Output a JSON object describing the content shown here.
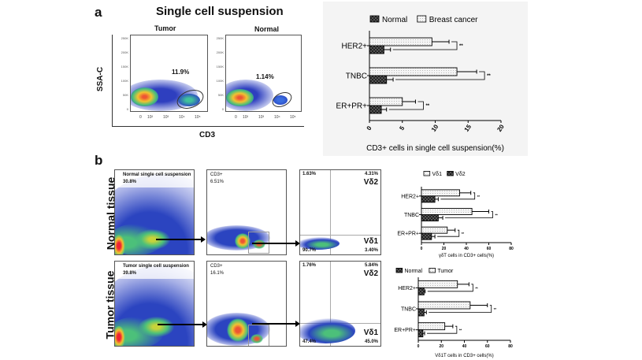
{
  "panel_a": {
    "letter": "a",
    "title": "Single cell suspension",
    "plot_labels": [
      "Tumor",
      "Normal"
    ],
    "gate_percents": [
      "11.9%",
      "1.14%"
    ],
    "y_axis_label": "SSA-C",
    "x_axis_label": "CD3",
    "y_ticks": [
      "250K",
      "200K",
      "150K",
      "100K",
      "50K",
      "0"
    ],
    "x_ticks": [
      "0",
      "10²",
      "10³",
      "10⁴",
      "10⁵"
    ]
  },
  "panel_b": {
    "letter": "b",
    "rows": [
      {
        "label": "Normal tissue",
        "gate1_name": "Normal single cell suspension",
        "gate1_pct": "30.8%",
        "gate2_name": "CD3+",
        "gate2_pct": "6.51%",
        "q_ul": "1.63%",
        "q_ur": "4.31%",
        "q_ll": "90.7%",
        "q_lr": "3.40%",
        "vd2": "Vδ2",
        "vd1": "Vδ1"
      },
      {
        "label": "Tumor tissue",
        "gate1_name": "Tumor single cell suspension",
        "gate1_pct": "39.8%",
        "gate2_name": "CD3+",
        "gate2_pct": "16.1%",
        "q_ul": "1.76%",
        "q_ur": "5.84%",
        "q_ll": "47.4%",
        "q_lr": "45.0%",
        "vd2": "Vδ2",
        "vd1": "Vδ1"
      }
    ]
  },
  "chart_data": [
    {
      "type": "bar",
      "orientation": "horizontal",
      "categories": [
        "HER2+",
        "TNBC",
        "ER+PR+"
      ],
      "series": [
        {
          "name": "Breast cancer",
          "values": [
            9.5,
            13.3,
            5.0
          ],
          "errors": [
            2.6,
            3.0,
            2.0
          ],
          "pattern": "dotted-light"
        },
        {
          "name": "Normal",
          "values": [
            2.2,
            2.6,
            1.8
          ],
          "errors": [
            1.0,
            1.0,
            0.8
          ],
          "pattern": "checker-dark"
        }
      ],
      "legend_order": [
        "Normal",
        "Breast cancer"
      ],
      "significance": [
        "**",
        "**",
        "**"
      ],
      "xlabel": "CD3+ cells in single cell suspension(%)",
      "xlim": [
        0,
        20
      ],
      "xticks": [
        "0",
        "5",
        "10",
        "15",
        "20"
      ],
      "legend": "top"
    },
    {
      "type": "bar",
      "orientation": "horizontal",
      "categories": [
        "HER2+",
        "TNBC",
        "ER+PR+"
      ],
      "series": [
        {
          "name": "Vδ1",
          "values": [
            34,
            45,
            23
          ],
          "errors": [
            10,
            15,
            7
          ],
          "pattern": "dotted-light"
        },
        {
          "name": "Vδ2",
          "values": [
            12,
            15,
            9
          ],
          "errors": [
            3,
            4,
            3
          ],
          "pattern": "checker-dark"
        }
      ],
      "legend_order": [
        "Vδ1",
        "Vδ2"
      ],
      "significance": [
        "**",
        "**",
        "**"
      ],
      "xlabel": "γδT cells in CD3+ cells(%)",
      "xlim": [
        0,
        80
      ],
      "xticks": [
        "0",
        "20",
        "40",
        "60",
        "80"
      ],
      "legend": "top"
    },
    {
      "type": "bar",
      "orientation": "horizontal",
      "categories": [
        "HER2+",
        "TNBC",
        "ER+PR+"
      ],
      "series": [
        {
          "name": "Tumor",
          "values": [
            34,
            45,
            23
          ],
          "errors": [
            10,
            15,
            7
          ],
          "pattern": "dotted-light"
        },
        {
          "name": "Normal",
          "values": [
            5,
            5,
            4
          ],
          "errors": [
            1,
            2,
            1.5
          ],
          "pattern": "checker-dark"
        }
      ],
      "legend_order": [
        "Normal",
        "Tumor"
      ],
      "significance": [
        "**",
        "**",
        "**"
      ],
      "xlabel": "Vδ1T cells in CD3+ cells(%)",
      "xlim": [
        0,
        80
      ],
      "xticks": [
        "0",
        "20",
        "40",
        "60",
        "80"
      ],
      "legend": "top"
    }
  ]
}
